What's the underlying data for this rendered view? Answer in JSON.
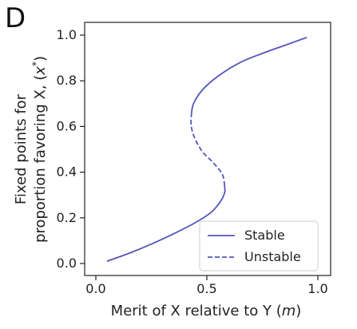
{
  "panel_label": "D",
  "chart_data": {
    "type": "line",
    "xlabel": "Merit of X relative to Y (m)",
    "xlabel_parts": {
      "main": "Merit of X relative to Y (",
      "var": "m",
      "close": ")"
    },
    "ylabel_line1": "Fixed points for",
    "ylabel_line2": "proportion favoring X, (x*)",
    "ylabel_line2_parts": {
      "main": "proportion favoring X, (",
      "var": "x",
      "sup": "*",
      "close": ")"
    },
    "xlim": [
      0.0,
      1.0
    ],
    "ylim": [
      0.0,
      1.0
    ],
    "xticks": [
      0.0,
      0.5,
      1.0
    ],
    "xtick_labels": [
      "0.0",
      "0.5",
      "1.0"
    ],
    "yticks": [
      0.0,
      0.2,
      0.4,
      0.6,
      0.8,
      1.0
    ],
    "ytick_labels": [
      "0.0",
      "0.2",
      "0.4",
      "0.6",
      "0.8",
      "1.0"
    ],
    "grid": false,
    "legend_position": "lower-right",
    "color": "#5555bb",
    "series": [
      {
        "name": "Stable",
        "style": "solid",
        "points": [
          [
            0.05,
            0.01
          ],
          [
            0.15,
            0.045
          ],
          [
            0.25,
            0.085
          ],
          [
            0.35,
            0.13
          ],
          [
            0.45,
            0.18
          ],
          [
            0.52,
            0.225
          ],
          [
            0.56,
            0.27
          ],
          [
            0.58,
            0.31
          ],
          [
            0.58,
            0.34
          ]
        ]
      },
      {
        "name": "Unstable",
        "style": "dashed",
        "points": [
          [
            0.58,
            0.34
          ],
          [
            0.57,
            0.39
          ],
          [
            0.53,
            0.44
          ],
          [
            0.48,
            0.49
          ],
          [
            0.445,
            0.55
          ],
          [
            0.43,
            0.6
          ],
          [
            0.43,
            0.65
          ]
        ]
      },
      {
        "name": "Stable",
        "style": "solid",
        "points": [
          [
            0.43,
            0.65
          ],
          [
            0.44,
            0.7
          ],
          [
            0.48,
            0.76
          ],
          [
            0.55,
            0.82
          ],
          [
            0.65,
            0.88
          ],
          [
            0.75,
            0.92
          ],
          [
            0.85,
            0.955
          ],
          [
            0.95,
            0.99
          ]
        ]
      }
    ],
    "legend": [
      {
        "label": "Stable",
        "style": "solid"
      },
      {
        "label": "Unstable",
        "style": "dashed"
      }
    ]
  }
}
